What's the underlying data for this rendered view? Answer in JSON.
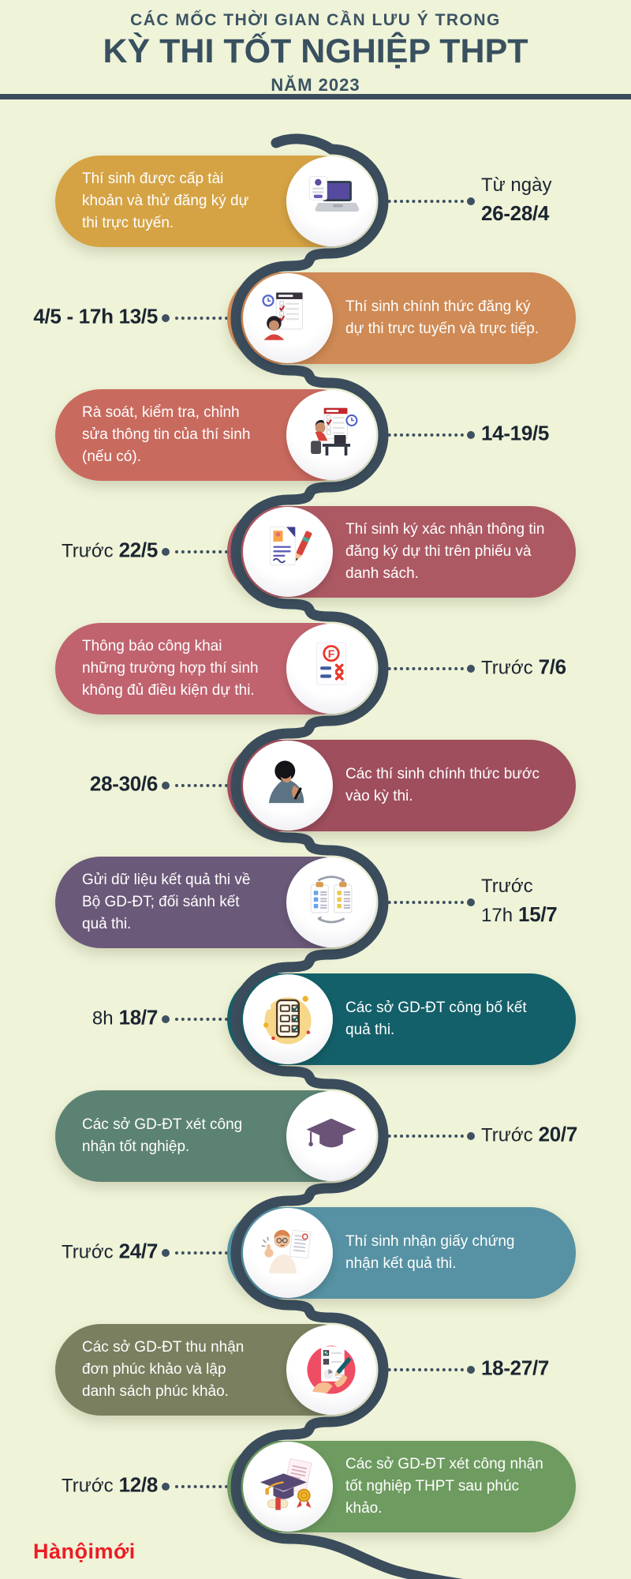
{
  "header": {
    "kicker": "CÁC MỐC THỜI GIAN CẦN LƯU Ý TRONG",
    "title": "KỲ THI TỐT NGHIỆP THPT",
    "subtitle": "NĂM 2023"
  },
  "footer": {
    "logo_text": "Hànộimới"
  },
  "colors": {
    "background": "#eff3d8",
    "timeline_curve": "#3b4d5c",
    "date_text": "#1b2530",
    "logo_red": "#ec1c24"
  },
  "milestones": [
    {
      "id": 1,
      "side": "left",
      "color": "#d5a344",
      "icon": "laptop-login-icon",
      "text": "Thí sinh được cấp tài khoản và thử đăng ký dự thi trực tuyến.",
      "date_lines": [
        {
          "pre": "Từ ngày",
          "val": ""
        },
        {
          "pre": "",
          "val": "26-28/4"
        }
      ]
    },
    {
      "id": 2,
      "side": "right",
      "color": "#cf8a55",
      "icon": "online-register-icon",
      "text": "Thí sinh chính thức đăng ký dự thi trực tuyến và trực tiếp.",
      "date_lines": [
        {
          "pre": "",
          "val": "4/5 - 17h 13/5"
        }
      ]
    },
    {
      "id": 3,
      "side": "left",
      "color": "#c96a5e",
      "icon": "review-info-icon",
      "text": "Rà soát, kiểm tra, chỉnh sửa thông tin của thí sinh (nếu có).",
      "date_lines": [
        {
          "pre": "",
          "val": "14-19/5"
        }
      ]
    },
    {
      "id": 4,
      "side": "right",
      "color": "#ad5963",
      "icon": "sign-confirm-icon",
      "text": "Thí sinh ký xác nhận thông tin đăng ký dự thi trên phiếu và danh sách.",
      "date_lines": [
        {
          "pre": "Trước",
          "val": "22/5"
        }
      ]
    },
    {
      "id": 5,
      "side": "left",
      "color": "#c0636f",
      "icon": "ineligible-notice-icon",
      "text": "Thông báo công khai những trường hợp thí sinh không đủ điều kiện dự thi.",
      "date_lines": [
        {
          "pre": "Trước",
          "val": "7/6"
        }
      ]
    },
    {
      "id": 6,
      "side": "right",
      "color": "#9f4e5d",
      "icon": "exam-writing-icon",
      "text": "Các thí sinh chính thức bước vào kỳ thi.",
      "date_lines": [
        {
          "pre": "",
          "val": "28-30/6"
        }
      ]
    },
    {
      "id": 7,
      "side": "left",
      "color": "#6b5979",
      "icon": "send-results-icon",
      "text": "Gửi dữ liệu kết quả thi về Bộ GD-ĐT; đối sánh kết quả thi.",
      "date_lines": [
        {
          "pre": "Trước",
          "val": ""
        },
        {
          "pre": "17h",
          "val": "15/7"
        }
      ]
    },
    {
      "id": 8,
      "side": "right",
      "color": "#14606a",
      "icon": "announce-results-icon",
      "text": "Các sở GD-ĐT công bố kết quả thi.",
      "date_lines": [
        {
          "pre": "8h",
          "val": "18/7"
        }
      ]
    },
    {
      "id": 9,
      "side": "left",
      "color": "#5c8273",
      "icon": "graduation-cap-icon",
      "text": "Các sở GD-ĐT xét công nhận tốt nghiệp.",
      "date_lines": [
        {
          "pre": "Trước",
          "val": "20/7"
        }
      ]
    },
    {
      "id": 10,
      "side": "right",
      "color": "#5692a3",
      "icon": "certificate-receive-icon",
      "text": "Thí sinh nhận giấy chứng nhận kết quả thi.",
      "date_lines": [
        {
          "pre": "Trước",
          "val": "24/7"
        }
      ]
    },
    {
      "id": 11,
      "side": "left",
      "color": "#7a7f5f",
      "icon": "appeal-collect-icon",
      "text": "Các sở GD-ĐT thu nhận đơn phúc khảo và lập danh sách phúc khảo.",
      "date_lines": [
        {
          "pre": "",
          "val": "18-27/7"
        }
      ]
    },
    {
      "id": 12,
      "side": "right",
      "color": "#6e9b60",
      "icon": "graduation-appeal-icon",
      "text": "Các sở GD-ĐT xét công nhận tốt nghiệp THPT sau phúc khảo.",
      "date_lines": [
        {
          "pre": "Trước",
          "val": "12/8"
        }
      ]
    }
  ]
}
